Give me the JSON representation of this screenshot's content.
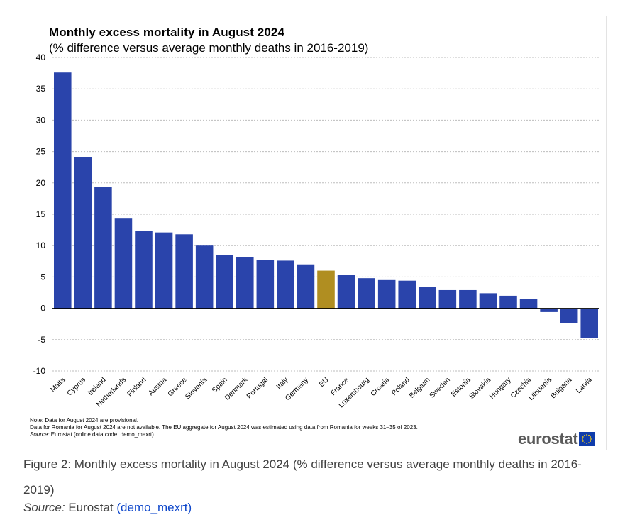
{
  "figure": {
    "caption": "Figure 2: Monthly excess mortality in August 2024 (% difference versus average monthly deaths in 2016-2019)",
    "source_label": "Source:",
    "source_text": "Eurostat",
    "source_link": "(demo_mexrt)"
  },
  "notes": {
    "line1": "Note: Data  for August 2024 are provisional.",
    "line2": "Data for Romania  for August 2024 are not available. The EU  aggregate for August 2024 was estimated using data from Romania  for weeks 31–35 of 2023.",
    "source_label": "Source:",
    "source_text": " Eurostat (online data code: demo_mexrt)"
  },
  "logo": {
    "text": "eurostat"
  },
  "colors": {
    "bar": "#2a44ab",
    "highlight": "#b08e21",
    "grid": "#bdbdbd",
    "axis": "#000000"
  },
  "chart_data": {
    "type": "bar",
    "title": "Monthly  excess mortality  in August 2024",
    "subtitle": "(% difference versus average monthly  deaths in 2016-2019)",
    "categories": [
      "Malta",
      "Cyprus",
      "Ireland",
      "Netherlands",
      "Finland",
      "Austria",
      "Greece",
      "Slovenia",
      "Spain",
      "Denmark",
      "Portugal",
      "Italy",
      "Germany",
      "EU",
      "France",
      "Luxembourg",
      "Croatia",
      "Poland",
      "Belgium",
      "Sweden",
      "Estonia",
      "Slovakia",
      "Hungary",
      "Czechia",
      "Lithuania",
      "Bulgaria",
      "Latvia"
    ],
    "values": [
      37.6,
      24.1,
      19.3,
      14.3,
      12.3,
      12.1,
      11.8,
      10.0,
      8.5,
      8.1,
      7.7,
      7.6,
      7.0,
      6.0,
      5.3,
      4.8,
      4.5,
      4.4,
      3.4,
      2.9,
      2.9,
      2.4,
      2.0,
      1.5,
      -0.6,
      -2.4,
      -4.7
    ],
    "highlight": [
      "EU"
    ],
    "yticks": [
      40,
      35,
      30,
      25,
      20,
      15,
      10,
      5,
      0,
      -5,
      -10
    ],
    "ylim": [
      -10,
      40
    ],
    "grid": true,
    "xlabel": "",
    "ylabel": ""
  }
}
